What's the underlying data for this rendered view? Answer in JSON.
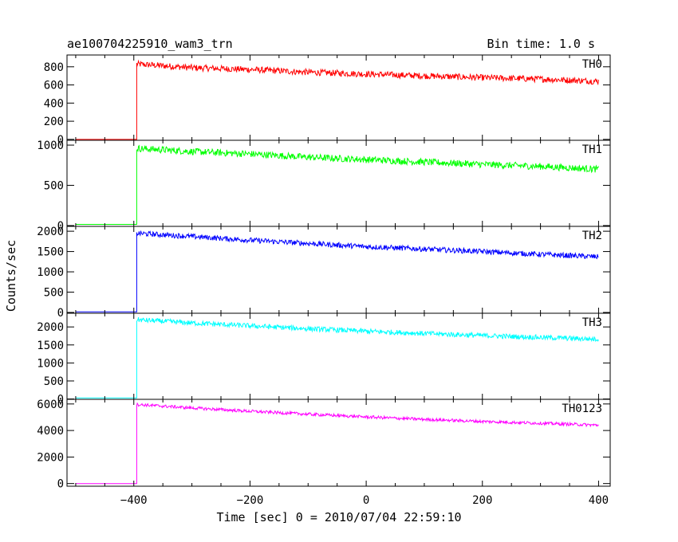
{
  "chart_data": {
    "type": "line",
    "title": "ae100704225910_wam3_trn",
    "subtitle": "Bin time: 1.0 s",
    "xlabel": "Time [sec] 0 = 2010/07/04 22:59:10",
    "ylabel": "Counts/sec",
    "xlim": [
      -515,
      420
    ],
    "xticks": [
      -400,
      -200,
      0,
      200,
      400
    ],
    "xtick_labels": [
      "−400",
      "−200",
      "0",
      "200",
      "400"
    ],
    "grid": false,
    "legend": "none",
    "onset_time": -395,
    "x_start": -500,
    "x_end": 400,
    "series": [
      {
        "name": "TH0",
        "color": "#ff0000",
        "ylim": [
          -10,
          930
        ],
        "yticks": [
          0,
          200,
          400,
          600,
          800
        ],
        "pre_level": 0,
        "trend": [
          [
            -395,
            830
          ],
          [
            -300,
            790
          ],
          [
            -200,
            770
          ],
          [
            -100,
            740
          ],
          [
            0,
            720
          ],
          [
            100,
            700
          ],
          [
            200,
            680
          ],
          [
            300,
            665
          ],
          [
            400,
            640
          ]
        ],
        "noise": 70
      },
      {
        "name": "TH1",
        "color": "#00ff00",
        "ylim": [
          -10,
          1060
        ],
        "yticks": [
          0,
          500,
          1000
        ],
        "pre_level": 15,
        "trend": [
          [
            -395,
            960
          ],
          [
            -300,
            920
          ],
          [
            -200,
            890
          ],
          [
            -100,
            850
          ],
          [
            0,
            820
          ],
          [
            100,
            790
          ],
          [
            200,
            760
          ],
          [
            300,
            735
          ],
          [
            400,
            700
          ]
        ],
        "noise": 85
      },
      {
        "name": "TH2",
        "color": "#0000ff",
        "ylim": [
          -20,
          2120
        ],
        "yticks": [
          0,
          500,
          1000,
          1500,
          2000
        ],
        "pre_level": 15,
        "trend": [
          [
            -395,
            1950
          ],
          [
            -300,
            1870
          ],
          [
            -200,
            1780
          ],
          [
            -100,
            1700
          ],
          [
            0,
            1620
          ],
          [
            100,
            1560
          ],
          [
            200,
            1500
          ],
          [
            300,
            1430
          ],
          [
            400,
            1370
          ]
        ],
        "noise": 130
      },
      {
        "name": "TH3",
        "color": "#00ffff",
        "ylim": [
          -10,
          2380
        ],
        "yticks": [
          0,
          500,
          1000,
          1500,
          2000
        ],
        "pre_level": 30,
        "trend": [
          [
            -395,
            2200
          ],
          [
            -300,
            2110
          ],
          [
            -200,
            2030
          ],
          [
            -100,
            1950
          ],
          [
            0,
            1880
          ],
          [
            100,
            1820
          ],
          [
            200,
            1760
          ],
          [
            300,
            1710
          ],
          [
            400,
            1660
          ]
        ],
        "noise": 140
      },
      {
        "name": "TH0123",
        "color": "#ff00ff",
        "ylim": [
          -200,
          6350
        ],
        "yticks": [
          0,
          2000,
          4000,
          6000
        ],
        "pre_level": 0,
        "trend": [
          [
            -395,
            5960
          ],
          [
            -300,
            5700
          ],
          [
            -200,
            5450
          ],
          [
            -100,
            5230
          ],
          [
            0,
            5020
          ],
          [
            100,
            4840
          ],
          [
            200,
            4680
          ],
          [
            300,
            4550
          ],
          [
            400,
            4400
          ]
        ],
        "noise": 230
      }
    ]
  }
}
